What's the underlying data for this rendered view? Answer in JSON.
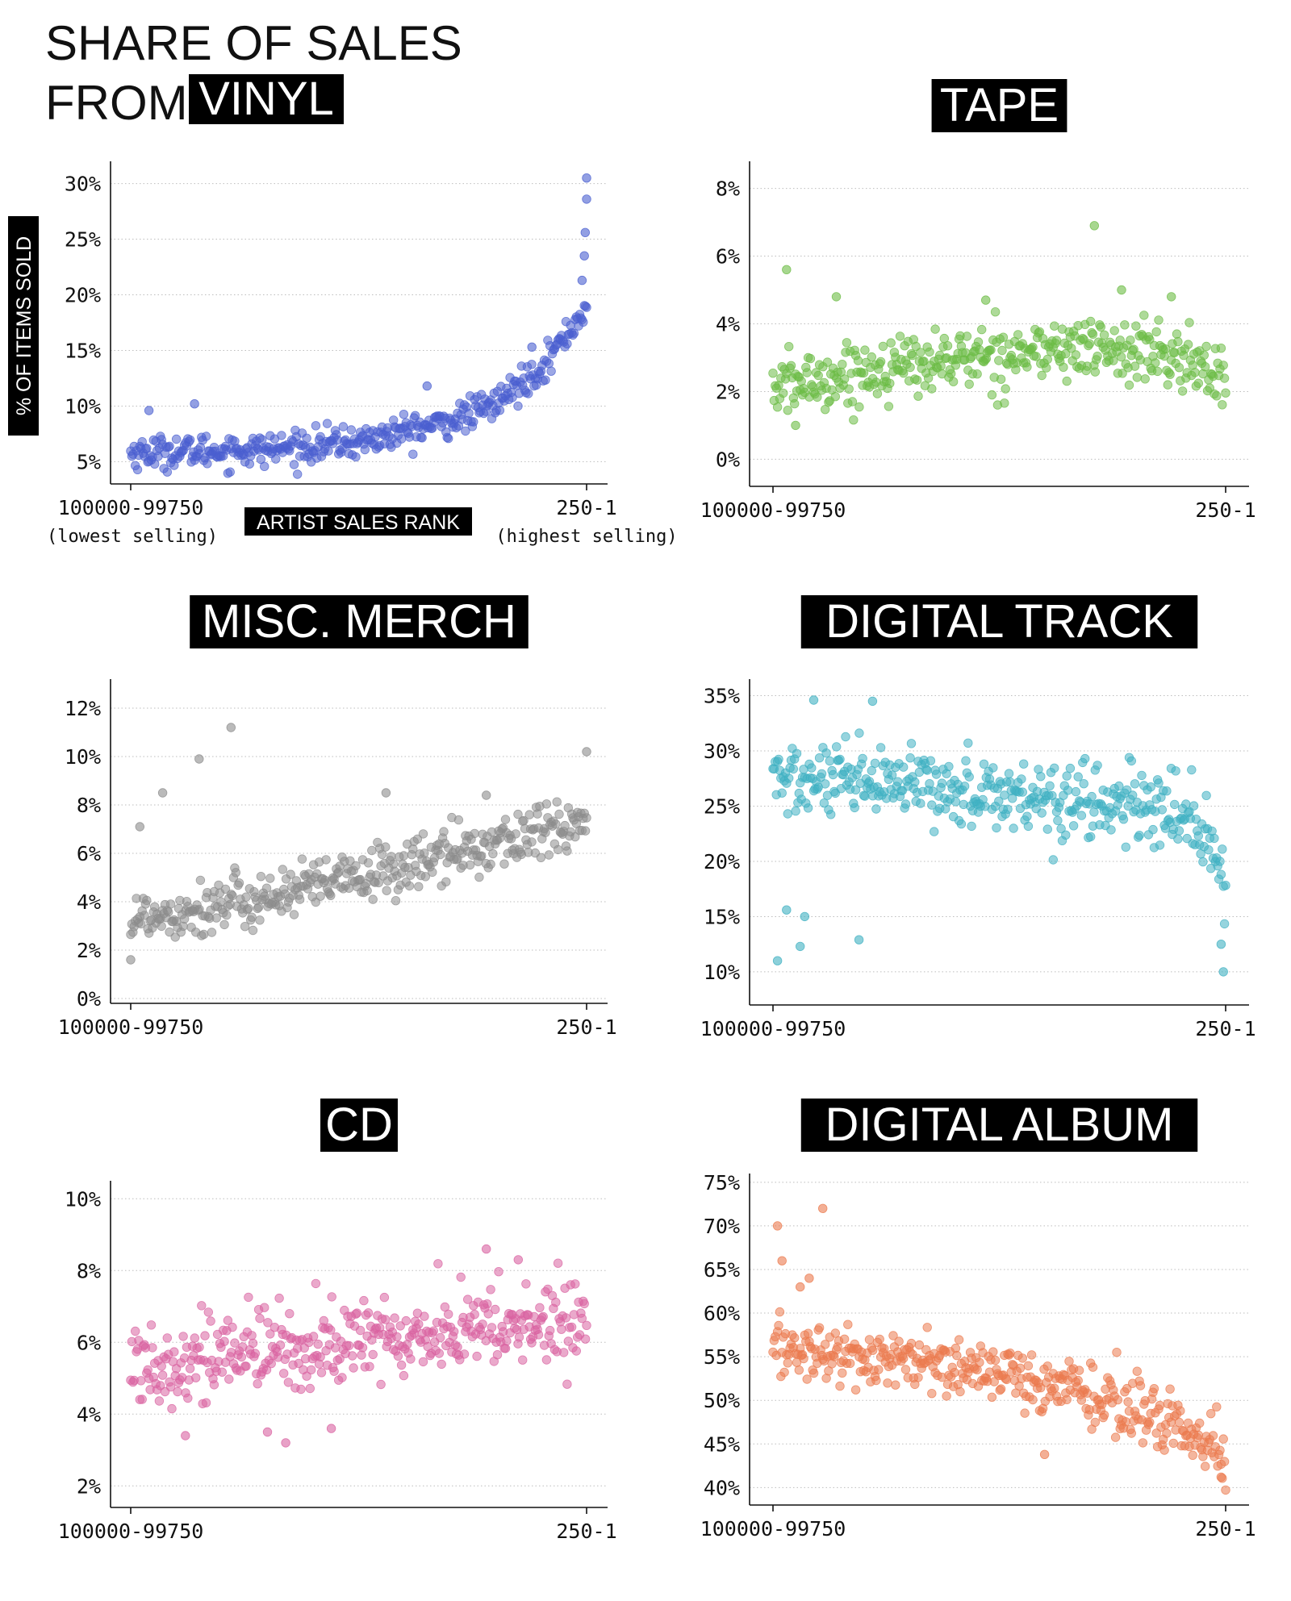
{
  "figure": {
    "title_line1": "SHARE OF SALES",
    "title_line2_prefix": "FROM",
    "ylabel": "% OF ITEMS SOLD",
    "xlabel": "ARTIST SALES RANK",
    "x_left_tick": "100000-99750",
    "x_right_tick": "250-1",
    "x_left_note": "(lowest selling)",
    "x_right_note": "(highest selling)",
    "grid": "dotted horizontal"
  },
  "chart_data": [
    {
      "type": "scatter",
      "title": "VINYL",
      "color": "#4a5fd0",
      "ylim": [
        3,
        32
      ],
      "yticks": [
        5,
        10,
        15,
        20,
        25,
        30
      ],
      "ytick_labels": [
        "5%",
        "10%",
        "15%",
        "20%",
        "25%",
        "30%"
      ],
      "xticks": [
        "100000-99750",
        "250-1"
      ],
      "xlabel": "ARTIST SALES RANK",
      "ylabel": "% OF ITEMS SOLD",
      "trend": [
        [
          0,
          5.8
        ],
        [
          0.3,
          6.1
        ],
        [
          0.5,
          6.8
        ],
        [
          0.7,
          8.6
        ],
        [
          0.8,
          10.2
        ],
        [
          0.9,
          13.5
        ],
        [
          0.95,
          16
        ],
        [
          1,
          19
        ]
      ],
      "spread": 1.2,
      "highlights": [
        [
          0.04,
          9.6
        ],
        [
          0.14,
          10.2
        ],
        [
          0.65,
          11.8
        ],
        [
          0.88,
          15.3
        ],
        [
          0.99,
          21.3
        ],
        [
          0.995,
          23.5
        ],
        [
          0.997,
          25.6
        ],
        [
          1.0,
          28.6
        ],
        [
          1.0,
          30.5
        ]
      ]
    },
    {
      "type": "scatter",
      "title": "TAPE",
      "color": "#6cbc45",
      "ylim": [
        -0.8,
        8.8
      ],
      "yticks": [
        0,
        2,
        4,
        6,
        8
      ],
      "ytick_labels": [
        "0%",
        "2%",
        "4%",
        "6%",
        "8%"
      ],
      "xticks": [
        "100000-99750",
        "250-1"
      ],
      "trend": [
        [
          0,
          2.1
        ],
        [
          0.3,
          2.8
        ],
        [
          0.5,
          3.1
        ],
        [
          0.7,
          3.3
        ],
        [
          0.85,
          3.1
        ],
        [
          1,
          2.5
        ]
      ],
      "spread": 0.75,
      "highlights": [
        [
          0.03,
          5.6
        ],
        [
          0.14,
          4.8
        ],
        [
          0.47,
          4.7
        ],
        [
          0.71,
          6.9
        ],
        [
          0.77,
          5.0
        ],
        [
          0.88,
          4.8
        ],
        [
          0.05,
          1.0
        ]
      ]
    },
    {
      "type": "scatter",
      "title": "MISC. MERCH",
      "color": "#8c8c8c",
      "ylim": [
        -0.2,
        13.2
      ],
      "yticks": [
        0,
        2,
        4,
        6,
        8,
        10,
        12
      ],
      "ytick_labels": [
        "0%",
        "2%",
        "4%",
        "6%",
        "8%",
        "10%",
        "12%"
      ],
      "xticks": [
        "100000-99750",
        "250-1"
      ],
      "trend": [
        [
          0,
          3.3
        ],
        [
          0.25,
          4.0
        ],
        [
          0.5,
          5.0
        ],
        [
          0.75,
          6.2
        ],
        [
          1,
          7.3
        ]
      ],
      "spread": 0.95,
      "highlights": [
        [
          0.22,
          11.2
        ],
        [
          0.15,
          9.9
        ],
        [
          0.07,
          8.5
        ],
        [
          0.56,
          8.5
        ],
        [
          0.78,
          8.4
        ],
        [
          1.0,
          10.2
        ],
        [
          0.0,
          1.6
        ],
        [
          0.02,
          7.1
        ]
      ]
    },
    {
      "type": "scatter",
      "title": "DIGITAL TRACK",
      "color": "#3fb0c2",
      "ylim": [
        7,
        36.5
      ],
      "yticks": [
        10,
        15,
        20,
        25,
        30,
        35
      ],
      "ytick_labels": [
        "10%",
        "15%",
        "20%",
        "25%",
        "30%",
        "35%"
      ],
      "xticks": [
        "100000-99750",
        "250-1"
      ],
      "trend": [
        [
          0,
          27.5
        ],
        [
          0.15,
          27
        ],
        [
          0.4,
          26.5
        ],
        [
          0.7,
          25.5
        ],
        [
          0.93,
          24
        ],
        [
          0.98,
          21
        ],
        [
          1,
          15
        ]
      ],
      "spread": 2.8,
      "highlights": [
        [
          0.01,
          11
        ],
        [
          0.06,
          12.3
        ],
        [
          0.19,
          12.9
        ],
        [
          0.03,
          15.6
        ],
        [
          0.07,
          15
        ],
        [
          0.09,
          34.6
        ],
        [
          0.22,
          34.5
        ],
        [
          0.99,
          12.5
        ],
        [
          0.995,
          10
        ]
      ]
    },
    {
      "type": "scatter",
      "title": "CD",
      "color": "#d963a1",
      "ylim": [
        1.4,
        10.5
      ],
      "yticks": [
        2,
        4,
        6,
        8,
        10
      ],
      "ytick_labels": [
        "2%",
        "4%",
        "6%",
        "8%",
        "10%"
      ],
      "xticks": [
        "100000-99750",
        "250-1"
      ],
      "trend": [
        [
          0,
          5.4
        ],
        [
          0.35,
          5.8
        ],
        [
          0.7,
          6.3
        ],
        [
          1,
          6.6
        ]
      ],
      "spread": 1.0,
      "highlights": [
        [
          0.34,
          3.2
        ],
        [
          0.12,
          3.4
        ],
        [
          0.44,
          3.6
        ],
        [
          0.78,
          8.6
        ],
        [
          0.85,
          8.3
        ],
        [
          0.3,
          3.5
        ]
      ]
    },
    {
      "type": "scatter",
      "title": "DIGITAL ALBUM",
      "color": "#eb7a4e",
      "ylim": [
        38,
        76
      ],
      "yticks": [
        40,
        45,
        50,
        55,
        60,
        65,
        70,
        75
      ],
      "ytick_labels": [
        "40%",
        "45%",
        "50%",
        "55%",
        "60%",
        "65%",
        "70%",
        "75%"
      ],
      "xticks": [
        "100000-99750",
        "250-1"
      ],
      "trend": [
        [
          0,
          56
        ],
        [
          0.2,
          55
        ],
        [
          0.45,
          53.5
        ],
        [
          0.7,
          50.5
        ],
        [
          0.9,
          47
        ],
        [
          1,
          44
        ]
      ],
      "spread": 2.8,
      "highlights": [
        [
          0.01,
          70
        ],
        [
          0.11,
          72
        ],
        [
          0.02,
          66
        ],
        [
          0.08,
          64
        ],
        [
          0.06,
          63
        ],
        [
          0.6,
          43.8
        ],
        [
          0.99,
          41.2
        ]
      ]
    }
  ]
}
